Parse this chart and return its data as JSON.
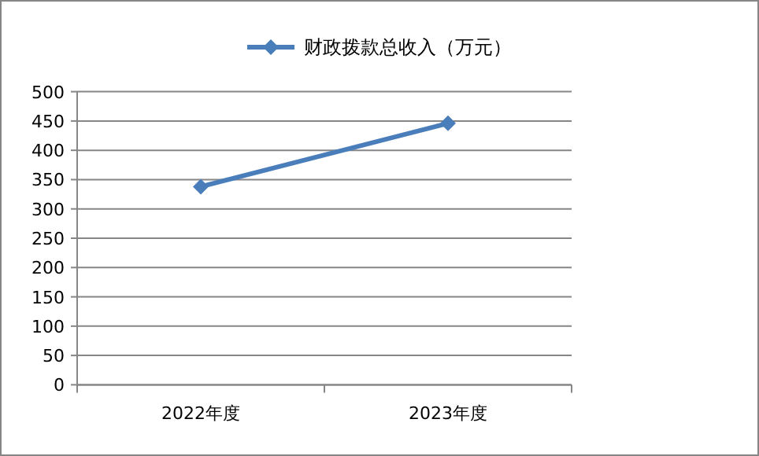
{
  "chart_data": {
    "type": "line",
    "categories": [
      "2022年度",
      "2023年度"
    ],
    "series": [
      {
        "name": "财政拨款总收入（万元）",
        "color": "#4a7ebb",
        "values": [
          338,
          446
        ]
      }
    ],
    "ylim": [
      0,
      500
    ],
    "yticks": [
      0,
      50,
      100,
      150,
      200,
      250,
      300,
      350,
      400,
      450,
      500
    ],
    "grid": "y",
    "legend": "top",
    "marker": "diamond",
    "line_style": "solid"
  }
}
